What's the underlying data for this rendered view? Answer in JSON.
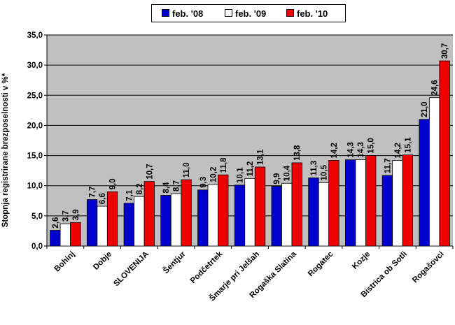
{
  "chart_data": {
    "type": "bar",
    "ylabel": "Stopnja registrirane brezposelnosti v %*",
    "xlabel": "",
    "ylim": [
      0,
      35
    ],
    "yticks": [
      "0,0",
      "5,0",
      "10,0",
      "15,0",
      "20,0",
      "25,0",
      "30,0",
      "35,0"
    ],
    "grid": true,
    "legend_position": "top",
    "categories": [
      "Bohinj",
      "Dobje",
      "SLOVENIJA",
      "Šentjur",
      "Podčetrtek",
      "Šmarje pri Jelšah",
      "Rogaška Slatina",
      "Rogatec",
      "Kozje",
      "Bistrica ob Sotli",
      "Rogašovci"
    ],
    "series": [
      {
        "name": "feb. '08",
        "color": "#0000CC",
        "values": [
          2.6,
          7.7,
          7.1,
          8.4,
          9.3,
          10.1,
          9.9,
          11.3,
          14.3,
          11.7,
          21.0
        ],
        "labels": [
          "2,6",
          "7,7",
          "7,1",
          "8,4",
          "9,3",
          "10,1",
          "9,9",
          "11,3",
          "14,3",
          "11,7",
          "21,0"
        ]
      },
      {
        "name": "feb. '09",
        "color": "#FFFFFF",
        "values": [
          3.7,
          6.6,
          8.2,
          8.7,
          10.2,
          11.2,
          10.4,
          10.5,
          14.3,
          14.2,
          24.6
        ],
        "labels": [
          "3,7",
          "6,6",
          "8,2",
          "8,7",
          "10,2",
          "11,2",
          "10,4",
          "10,5",
          "14,3",
          "14,2",
          "24,6"
        ]
      },
      {
        "name": "feb. '10",
        "color": "#EE0000",
        "values": [
          3.9,
          9.0,
          10.7,
          11.0,
          11.8,
          13.1,
          13.8,
          14.2,
          15.0,
          15.1,
          30.7
        ],
        "labels": [
          "3,9",
          "9,0",
          "10,7",
          "11,0",
          "11,8",
          "13,1",
          "13,8",
          "14,2",
          "15,0",
          "15,1",
          "30,7"
        ]
      }
    ],
    "plot_background": "#C0C0C0"
  }
}
